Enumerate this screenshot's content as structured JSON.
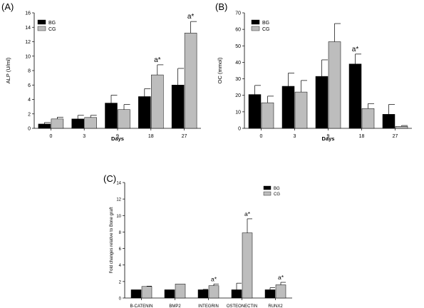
{
  "colors": {
    "bg_series": "#000000",
    "cg_series": "#bdbdbd",
    "axis": "#000000"
  },
  "chart_data": [
    {
      "panel": "(A)",
      "type": "bar",
      "categories": [
        "0",
        "3",
        "9",
        "18",
        "27"
      ],
      "series": [
        {
          "name": "BG",
          "values": [
            0.6,
            1.3,
            3.5,
            4.4,
            6.0
          ],
          "errors": [
            0.2,
            0.5,
            1.1,
            1.1,
            2.3
          ]
        },
        {
          "name": "CG",
          "values": [
            1.3,
            1.5,
            2.6,
            7.4,
            13.2
          ],
          "errors": [
            0.25,
            0.3,
            0.7,
            1.4,
            1.6
          ]
        }
      ],
      "annotations": [
        {
          "category": "18",
          "series": "CG",
          "text": "a*"
        },
        {
          "category": "27",
          "series": "CG",
          "text": "a*"
        }
      ],
      "xlabel": "Days",
      "ylabel": "ALP (U/ml)",
      "ylim": [
        0,
        16
      ],
      "yticks": [
        0,
        2,
        4,
        6,
        8,
        10,
        12,
        14,
        16
      ],
      "legend": "top-left",
      "grid": false
    },
    {
      "panel": "(B)",
      "type": "bar",
      "categories": [
        "0",
        "3",
        "9",
        "18",
        "27"
      ],
      "series": [
        {
          "name": "BG",
          "values": [
            20.5,
            25.5,
            31.5,
            39.0,
            8.5
          ],
          "errors": [
            5.5,
            8.0,
            10.0,
            6.0,
            6.0
          ]
        },
        {
          "name": "CG",
          "values": [
            15.5,
            22.0,
            52.5,
            12.0,
            1.2
          ],
          "errors": [
            4.0,
            7.0,
            11.0,
            3.0,
            0.5
          ]
        }
      ],
      "annotations": [
        {
          "category": "18",
          "series": "BG",
          "text": "a*"
        }
      ],
      "xlabel": "Days",
      "ylabel": "OC (mmol)",
      "ylim": [
        0,
        70
      ],
      "yticks": [
        0,
        10,
        20,
        30,
        40,
        50,
        60,
        70
      ],
      "legend": "top-left",
      "grid": false
    },
    {
      "panel": "(C)",
      "type": "bar",
      "categories": [
        "B-CATENIN",
        "BMP2",
        "INTEGRIN",
        "OSTEONECTIN",
        "RUNX2"
      ],
      "series": [
        {
          "name": "BG",
          "values": [
            1.0,
            1.0,
            1.0,
            1.0,
            1.0
          ],
          "errors": [
            0,
            0,
            0.05,
            0.8,
            0.25
          ]
        },
        {
          "name": "CG",
          "values": [
            1.4,
            1.7,
            1.5,
            7.9,
            1.6
          ],
          "errors": [
            0.04,
            0,
            0.2,
            1.7,
            0.3
          ]
        }
      ],
      "annotations": [
        {
          "category": "INTEGRIN",
          "series": "CG",
          "text": "a*"
        },
        {
          "category": "OSTEONECTIN",
          "series": "CG",
          "text": "a*"
        },
        {
          "category": "RUNX2",
          "series": "CG",
          "text": "a*"
        }
      ],
      "xlabel": "",
      "ylabel": "Fold changes relative to Bone graft",
      "ylim": [
        0,
        14
      ],
      "yticks": [
        0,
        2,
        4,
        6,
        8,
        10,
        12,
        14
      ],
      "legend": "top-right",
      "grid": false
    }
  ]
}
